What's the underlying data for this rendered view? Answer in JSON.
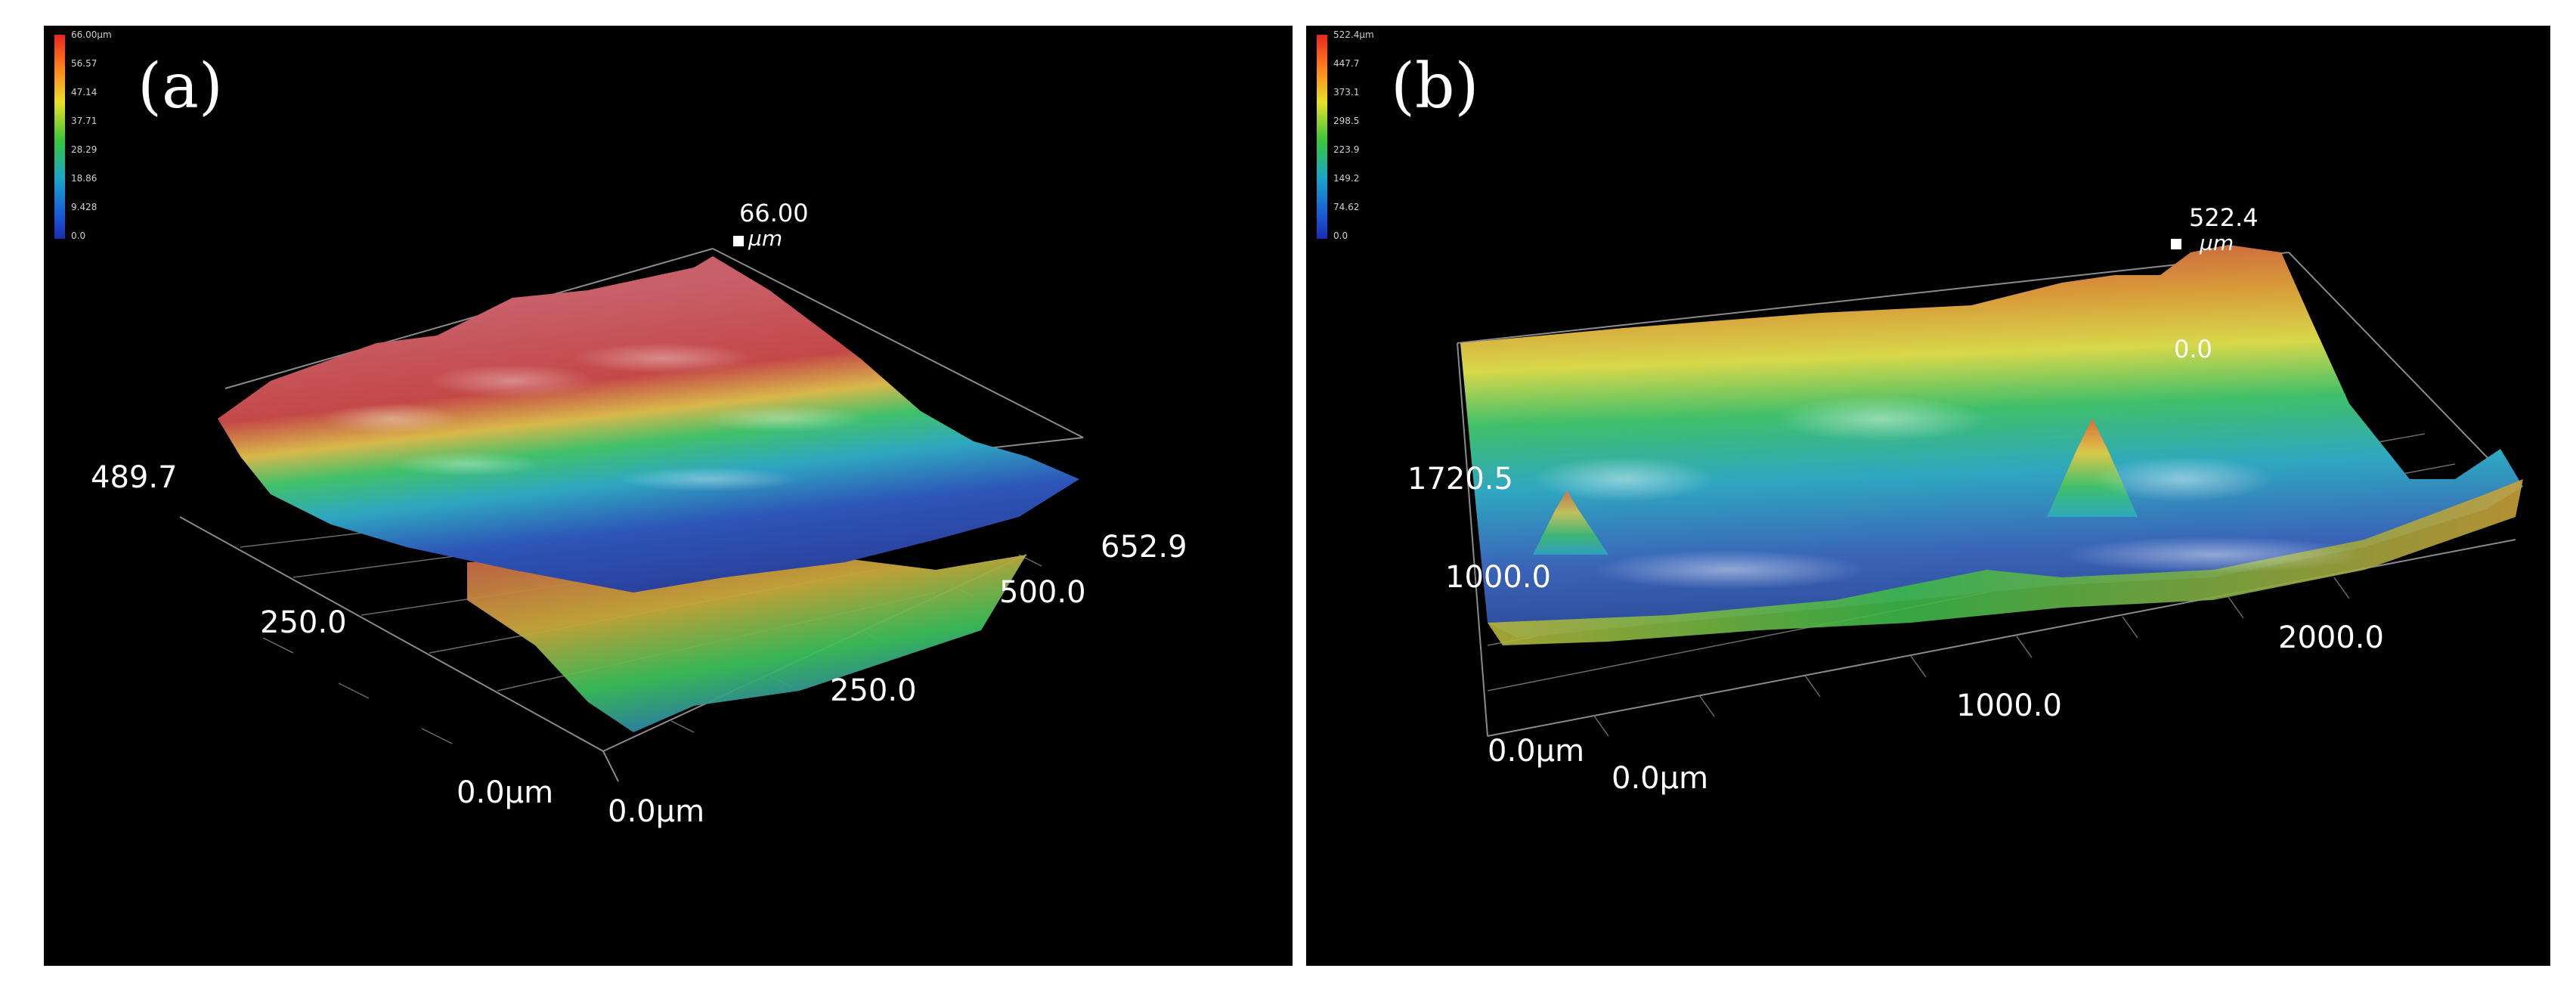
{
  "figure": {
    "panels": [
      {
        "label": "(a)",
        "colorbar": {
          "ticks": [
            "66.00µm",
            "56.57",
            "47.14",
            "37.71",
            "28.29",
            "18.86",
            "9.428",
            "0.0"
          ]
        },
        "z_max": "66.00",
        "z_unit": "µm",
        "y_axis": [
          "489.7",
          "250.0",
          "0.0µm"
        ],
        "x_axis": [
          "652.9",
          "500.0",
          "250.0",
          "0.0µm"
        ]
      },
      {
        "label": "(b)",
        "colorbar": {
          "ticks": [
            "522.4µm",
            "447.7",
            "373.1",
            "298.5",
            "223.9",
            "149.2",
            "74.62",
            "0.0"
          ]
        },
        "z_max": "522.4",
        "z_unit": "µm",
        "z_min": "0.0",
        "y_axis": [
          "1720.5",
          "1000.0",
          "0.0µm"
        ],
        "x_axis": [
          "2000.0",
          "1000.0",
          "0.0µm"
        ]
      }
    ]
  },
  "colors": {
    "background": "#000000",
    "high": "#c0444a",
    "mid": "#3bbf6a",
    "low": "#2a4fb8"
  }
}
